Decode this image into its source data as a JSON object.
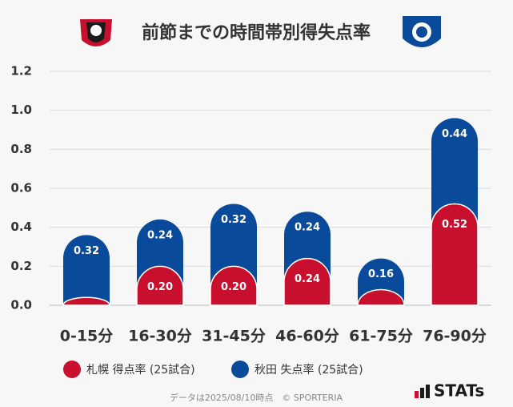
{
  "chart_data": {
    "type": "stacked_bar",
    "title": "前節までの時間帯別得失点率",
    "categories": [
      "0-15分",
      "16-30分",
      "31-45分",
      "46-60分",
      "61-75分",
      "76-90分"
    ],
    "series": [
      {
        "name": "札幌 得点率 (25試合)",
        "color": "#c8102e",
        "values": [
          0.04,
          0.2,
          0.2,
          0.24,
          0.08,
          0.52
        ],
        "value_labels": [
          null,
          "0.20",
          "0.20",
          "0.24",
          null,
          "0.52"
        ]
      },
      {
        "name": "秋田 失点率 (25試合)",
        "color": "#0a4a9a",
        "values": [
          0.32,
          0.24,
          0.32,
          0.24,
          0.16,
          0.44
        ],
        "value_labels": [
          "0.32",
          "0.24",
          "0.32",
          "0.24",
          "0.16",
          "0.44"
        ]
      }
    ],
    "ylim": [
      0,
      1.2
    ],
    "yticks": [
      {
        "value": 0,
        "label": "0.0"
      },
      {
        "value": 0.2,
        "label": "0.2"
      },
      {
        "value": 0.4,
        "label": "0.4"
      },
      {
        "value": 0.6,
        "label": "0.6"
      },
      {
        "value": 0.8,
        "label": "0.8"
      },
      {
        "value": 1,
        "label": "1.0"
      },
      {
        "value": 1.2,
        "label": "1.2"
      }
    ],
    "grid": true,
    "source": "データは2025/08/10時点　© SPORTERIA",
    "brand": "STATs"
  }
}
